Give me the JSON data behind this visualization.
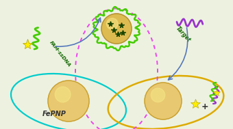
{
  "background_color": "#edf2e0",
  "ellipse_left_color": "#00cccc",
  "ellipse_right_color": "#ddaa00",
  "ellipse_center_color": "#ee44ee",
  "fam_ssdna_label": "FAM-ssDNA",
  "target_label": "Target",
  "fepnp_label": "FePNP",
  "plus_label": "+",
  "sphere_color1": "#e8c870",
  "sphere_color2": "#c8a030",
  "sphere_highlight": "#f5e888",
  "green_wavy": "#44cc00",
  "purple_wavy": "#9933cc",
  "blue_arrow": "#5577bb",
  "dark_green_label": "#116600",
  "quencher_color": "#1a4400"
}
